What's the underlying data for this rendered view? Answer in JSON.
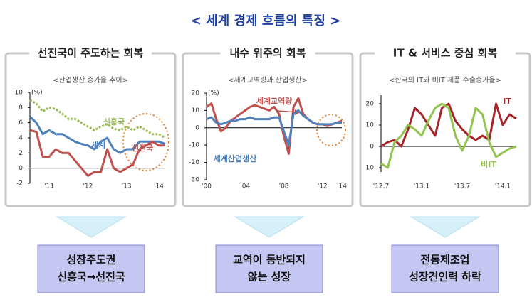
{
  "title": "< 세계 경제 흐름의 특징 >",
  "panels": [
    {
      "header": "선진국이 주도하는 회복",
      "conclusion": [
        "성장주도권",
        "신흥국→선진국"
      ]
    },
    {
      "header": "내수 위주의 회복",
      "conclusion": [
        "교역이 동반되지",
        "않는 성장"
      ]
    },
    {
      "header": "IT & 서비스 중심 회복",
      "conclusion": [
        "전통제조업",
        "성장견인력 하락"
      ]
    }
  ],
  "chart_data": [
    {
      "type": "line",
      "title": "<산업생산 증가율 추이>",
      "y_label": "(%)",
      "categories": [
        null,
        null,
        null,
        "'11",
        null,
        null,
        null,
        null,
        null,
        "'12",
        null,
        null,
        null,
        null,
        null,
        "'13",
        null,
        null,
        null,
        null,
        "'14",
        null
      ],
      "ylim": [
        -2,
        10
      ],
      "yticks": [
        -2,
        0,
        2,
        4,
        6,
        8,
        10
      ],
      "series": [
        {
          "name": "신흥국",
          "color": "#9bbb59",
          "dash": true,
          "values": [
            9,
            8.5,
            7.5,
            8,
            7.8,
            7.2,
            6.5,
            6.5,
            6,
            5.5,
            5,
            5.5,
            5.8,
            5.2,
            5,
            5.5,
            5,
            5.5,
            5,
            4.5,
            4.5,
            4
          ]
        },
        {
          "name": "세계",
          "color": "#4f81bd",
          "dash": false,
          "values": [
            6.8,
            6,
            4.5,
            5,
            4.5,
            4.5,
            4,
            3.5,
            3.2,
            3,
            2.5,
            3.5,
            4,
            2.5,
            2,
            2.5,
            2.5,
            3.5,
            3.5,
            3.5,
            3.5,
            3.2
          ]
        },
        {
          "name": "선진국",
          "color": "#c0504d",
          "dash": false,
          "values": [
            5,
            4.8,
            1.5,
            1.5,
            2.5,
            2,
            2,
            1,
            0,
            -1,
            -0.5,
            -0.5,
            2.5,
            0,
            -0.5,
            0,
            0.5,
            2.5,
            3,
            3.5,
            3,
            3
          ]
        }
      ]
    },
    {
      "type": "line",
      "title": "<세계교역량과 산업생산>",
      "y_label": "(%)",
      "categories": [
        "'00",
        null,
        null,
        null,
        null,
        null,
        null,
        null,
        "'04",
        null,
        null,
        null,
        null,
        null,
        null,
        null,
        "'08",
        null,
        null,
        null,
        null,
        null,
        null,
        null,
        "'12",
        null,
        null,
        null,
        "'14"
      ],
      "ylim": [
        -30,
        20
      ],
      "yticks": [
        -30,
        -20,
        -10,
        0,
        10,
        20
      ],
      "series": [
        {
          "name": "세계교역량",
          "color": "#c0504d",
          "dash": false,
          "values": [
            12,
            14,
            5,
            -2,
            0,
            4,
            6,
            8,
            10,
            12,
            13,
            12,
            11,
            10,
            12,
            8,
            -5,
            -15,
            12,
            17,
            8,
            5,
            3,
            2,
            2,
            1,
            2,
            3,
            4
          ]
        },
        {
          "name": "세계산업생산",
          "color": "#4f81bd",
          "dash": false,
          "values": [
            5,
            6,
            3,
            2,
            3,
            4,
            4,
            5,
            5,
            6,
            5,
            5,
            5,
            5,
            6,
            6,
            -2,
            -10,
            8,
            10,
            7,
            5,
            3,
            2,
            2,
            2,
            2,
            3,
            3
          ]
        }
      ]
    },
    {
      "type": "line",
      "title": "<한국의 IT와 비IT 제품 수출증가율>",
      "categories": [
        "'12.7",
        null,
        null,
        null,
        null,
        null,
        "'13.1",
        null,
        null,
        null,
        null,
        null,
        "'13.7",
        null,
        null,
        null,
        null,
        null,
        "'14.1",
        null,
        null
      ],
      "ylim": [
        -12,
        24
      ],
      "yticks": [
        {
          "value": -10,
          "label": "10"
        },
        0,
        10,
        20
      ],
      "series": [
        {
          "name": "IT",
          "color": "#a5262a",
          "dash": false,
          "values": [
            0,
            2,
            3,
            0,
            8,
            18,
            15,
            10,
            5,
            18,
            20,
            12,
            8,
            5,
            3,
            5,
            3,
            20,
            10,
            15,
            13
          ]
        },
        {
          "name": "비IT",
          "color": "#92c44f",
          "dash": false,
          "values": [
            -8,
            -10,
            2,
            5,
            10,
            8,
            5,
            12,
            18,
            20,
            18,
            5,
            -2,
            5,
            18,
            15,
            2,
            -5,
            -3,
            -1,
            0
          ]
        }
      ]
    }
  ]
}
